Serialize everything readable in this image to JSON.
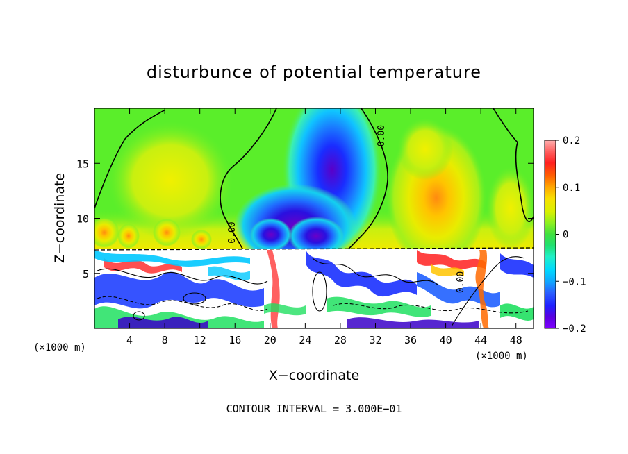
{
  "chart_data": {
    "type": "heatmap",
    "title": "disturbunce of potential temperature",
    "xlabel": "X−coordinate",
    "ylabel": "Z−coordinate",
    "x_unit_left": "(×1000 m)",
    "x_unit_right": "(×1000 m)",
    "xlim": [
      0,
      50
    ],
    "ylim": [
      0,
      20
    ],
    "x_ticks": [
      "4",
      "8",
      "12",
      "16",
      "20",
      "24",
      "28",
      "32",
      "36",
      "40",
      "44",
      "48"
    ],
    "x_tick_values": [
      4,
      8,
      12,
      16,
      20,
      24,
      28,
      32,
      36,
      40,
      44,
      48
    ],
    "y_ticks": [
      "5",
      "10",
      "15"
    ],
    "y_tick_values": [
      5,
      10,
      15
    ],
    "contour_labels": [
      {
        "text": "0.00",
        "x": 33,
        "z": 17.5
      },
      {
        "text": "0.00",
        "x": 16,
        "z": 8.7
      },
      {
        "text": "0.00",
        "x": 42,
        "z": 4.2
      }
    ],
    "colorbar": {
      "min": -0.2,
      "max": 0.2,
      "tick_labels": [
        "0.2",
        "0.1",
        "0",
        "−0.1",
        "−0.2"
      ],
      "tick_values": [
        0.2,
        0.1,
        0.0,
        -0.1,
        -0.2
      ],
      "colors": [
        "#7f00ff",
        "#3a00c8",
        "#1a30ff",
        "#2a70ff",
        "#00b8ff",
        "#1cf0e0",
        "#20e060",
        "#5af02a",
        "#9cf01a",
        "#d8f000",
        "#f4e600",
        "#ffc400",
        "#ff9000",
        "#ff4a00",
        "#ff1414",
        "#ff9a9a"
      ]
    },
    "regions": {
      "upper_layer_base_z": 7.2,
      "upper_layer_value": 0.0,
      "upper_layer_warm_max": 0.12,
      "upper_layer_warm_max_at": {
        "x": 39,
        "z": 11
      },
      "upper_layer_cold_min": -0.2,
      "upper_layer_cold_min_at": {
        "x": 23,
        "z": 10
      }
    },
    "footer": "CONTOUR INTERVAL = 3.000E−01"
  }
}
